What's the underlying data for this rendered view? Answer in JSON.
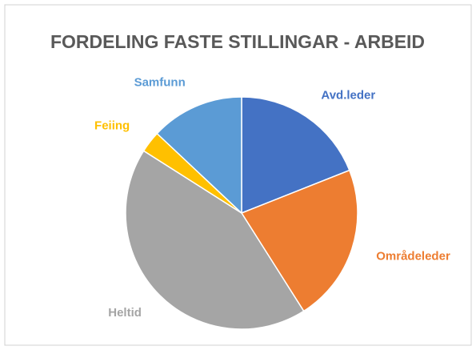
{
  "chart_data": {
    "type": "pie",
    "title": "FORDELING FASTE STILLINGAR - ARBEID",
    "categories": [
      "Avd.leder",
      "Områdeleder",
      "Heltid",
      "Feiing",
      "Samfunn"
    ],
    "values": [
      19,
      22,
      43,
      3,
      13
    ],
    "colors": [
      "#4472c4",
      "#ed7d31",
      "#a5a5a5",
      "#ffc000",
      "#5b9bd5"
    ]
  }
}
